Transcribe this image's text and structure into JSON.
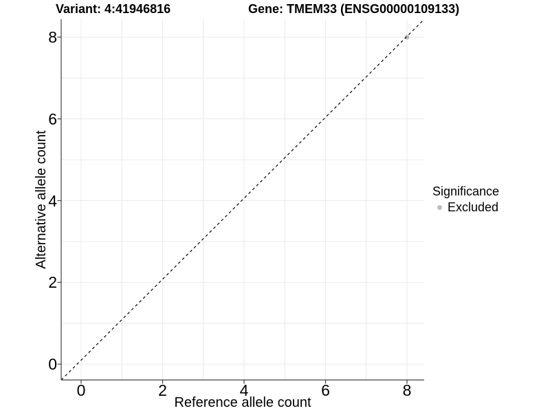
{
  "header": {
    "variant_title": "Variant: 4:41946816",
    "gene_title": "Gene: TMEM33 (ENSG00000109133)"
  },
  "legend": {
    "title": "Significance",
    "items": [
      {
        "label": "Excluded",
        "color": "#bdbdbd",
        "marker": "circle-icon"
      }
    ]
  },
  "chart_data": {
    "type": "scatter",
    "title_left": "Variant: 4:41946816",
    "title_right": "Gene: TMEM33 (ENSG00000109133)",
    "xlabel": "Reference allele count",
    "ylabel": "Alternative allele count",
    "xlim": [
      -0.49,
      8.42
    ],
    "ylim": [
      -0.39,
      8.44
    ],
    "xticks": [
      0,
      2,
      4,
      6,
      8
    ],
    "yticks": [
      0,
      2,
      4,
      6,
      8
    ],
    "grid": "on",
    "grid_step": 1,
    "legend_position": "right",
    "legend_title": "Significance",
    "series": [
      {
        "name": "Excluded",
        "color": "#bdbdbd",
        "points": [
          [
            8,
            8
          ]
        ]
      }
    ],
    "reference_line": {
      "type": "identity y=x",
      "style": "dashed",
      "color": "#000000"
    }
  },
  "colors": {
    "background": "#ffffff",
    "grid": "#eaeaea",
    "axis": "#404040",
    "text": "#000000",
    "point": "#bdbdbd",
    "dashed_line": "#000000"
  }
}
